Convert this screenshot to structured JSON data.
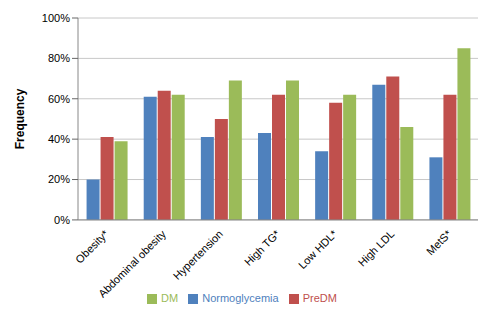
{
  "chart_data": {
    "type": "bar",
    "y_label": "Frequency",
    "categories": [
      "Obesity*",
      "Abdominal obesity",
      "Hypertension",
      "High TG*",
      "Low HDL*",
      "High LDL",
      "MetS*"
    ],
    "series": [
      {
        "name": "Normoglycemia",
        "color": "#4f81bd",
        "values": [
          20,
          61,
          41,
          43,
          34,
          67,
          31
        ]
      },
      {
        "name": "PreDM",
        "color": "#c0504d",
        "values": [
          41,
          64,
          50,
          62,
          58,
          71,
          62
        ]
      },
      {
        "name": "DM",
        "color": "#9bbb59",
        "values": [
          39,
          62,
          69,
          69,
          62,
          46,
          85
        ]
      }
    ],
    "ylim": [
      0,
      100
    ],
    "yticks": [
      {
        "value": 0,
        "label": "0%"
      },
      {
        "value": 20,
        "label": "20%"
      },
      {
        "value": 40,
        "label": "40%"
      },
      {
        "value": 60,
        "label": "60%"
      },
      {
        "value": 80,
        "label": "80%"
      },
      {
        "value": 100,
        "label": "100%"
      }
    ],
    "grid": true,
    "legend": "bottom"
  }
}
